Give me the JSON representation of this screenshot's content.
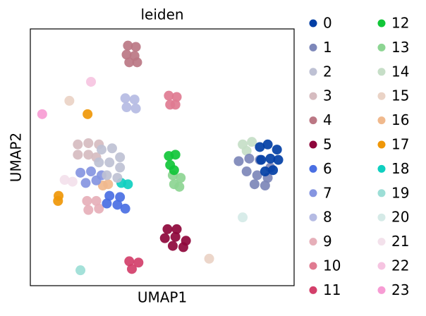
{
  "chart_data": {
    "type": "scatter",
    "title": "leiden",
    "xlabel": "UMAP1",
    "ylabel": "UMAP2",
    "xlim": [
      0,
      10
    ],
    "ylim": [
      0,
      10
    ],
    "series": [
      {
        "name": "0",
        "color": "#023fa5",
        "x": [
          8.7,
          9.0,
          9.35,
          8.75,
          9.1,
          9.4,
          8.9,
          9.2
        ],
        "y": [
          5.4,
          5.5,
          5.3,
          4.9,
          4.95,
          4.9,
          4.45,
          4.5
        ]
      },
      {
        "name": "1",
        "color": "#7d87b9",
        "x": [
          7.9,
          8.3,
          8.7,
          9.1,
          8.2,
          8.6,
          9.0,
          8.5,
          8.9
        ],
        "y": [
          4.85,
          4.95,
          4.9,
          4.6,
          4.45,
          4.3,
          4.2,
          3.95,
          3.9
        ]
      },
      {
        "name": "2",
        "color": "#bec1d4",
        "x": [
          2.7,
          3.1,
          3.4,
          2.6,
          3.0,
          3.4,
          2.9,
          3.3
        ],
        "y": [
          5.3,
          5.35,
          5.0,
          4.8,
          4.8,
          4.6,
          4.3,
          4.2
        ]
      },
      {
        "name": "3",
        "color": "#d6bcc0",
        "x": [
          1.8,
          2.2,
          2.6,
          1.8,
          2.2,
          2.5
        ],
        "y": [
          5.5,
          5.55,
          5.5,
          5.1,
          5.1,
          5.0
        ]
      },
      {
        "name": "4",
        "color": "#bb7784",
        "x": [
          3.7,
          4.0,
          3.65,
          3.95,
          3.75,
          4.05
        ],
        "y": [
          9.35,
          9.3,
          9.0,
          8.95,
          8.7,
          8.7
        ]
      },
      {
        "name": "5",
        "color": "#8e063b",
        "x": [
          5.2,
          5.55,
          5.1,
          5.5,
          5.9,
          5.4,
          5.8
        ],
        "y": [
          2.2,
          2.2,
          1.85,
          1.9,
          1.75,
          1.55,
          1.5
        ]
      },
      {
        "name": "6",
        "color": "#4a6fe3",
        "x": [
          3.0,
          3.4,
          2.9,
          3.3,
          3.6
        ],
        "y": [
          3.5,
          3.45,
          3.2,
          3.15,
          3.0
        ]
      },
      {
        "name": "7",
        "color": "#8595e1",
        "x": [
          1.9,
          2.3,
          2.7,
          2.1,
          2.5
        ],
        "y": [
          4.4,
          4.45,
          4.3,
          4.0,
          4.1
        ]
      },
      {
        "name": "8",
        "color": "#b5bbe3",
        "x": [
          3.6,
          3.95,
          3.65,
          4.0
        ],
        "y": [
          7.3,
          7.25,
          6.95,
          6.9
        ]
      },
      {
        "name": "9",
        "color": "#e6afb9",
        "x": [
          2.15,
          2.5,
          2.2,
          2.6
        ],
        "y": [
          3.3,
          3.3,
          2.95,
          3.0
        ]
      },
      {
        "name": "10",
        "color": "#e07b91",
        "x": [
          5.25,
          5.55,
          5.3,
          5.5
        ],
        "y": [
          7.4,
          7.35,
          7.05,
          7.05
        ]
      },
      {
        "name": "11",
        "color": "#d33f6a",
        "x": [
          3.75,
          4.1,
          3.85
        ],
        "y": [
          0.95,
          0.9,
          0.65
        ]
      },
      {
        "name": "12",
        "color": "#11c638",
        "x": [
          5.25,
          5.5,
          5.3,
          5.45
        ],
        "y": [
          5.05,
          5.1,
          4.7,
          4.5
        ]
      },
      {
        "name": "13",
        "color": "#8dd593",
        "x": [
          5.4,
          5.7,
          5.45,
          5.65
        ],
        "y": [
          4.3,
          4.2,
          3.95,
          3.85
        ]
      },
      {
        "name": "14",
        "color": "#c6dec7",
        "x": [
          8.05,
          8.4,
          8.2
        ],
        "y": [
          5.5,
          5.6,
          5.25
        ]
      },
      {
        "name": "15",
        "color": "#ead3c6",
        "x": [
          1.48,
          6.78
        ],
        "y": [
          7.2,
          1.05
        ]
      },
      {
        "name": "16",
        "color": "#f0b98d",
        "x": [
          2.75,
          2.95
        ],
        "y": [
          3.9,
          3.95
        ]
      },
      {
        "name": "17",
        "color": "#ef9708",
        "x": [
          2.17,
          1.07,
          1.05
        ],
        "y": [
          6.68,
          3.5,
          3.3
        ]
      },
      {
        "name": "18",
        "color": "#0fcfc0",
        "x": [
          3.45,
          3.7
        ],
        "y": [
          4.0,
          3.95
        ]
      },
      {
        "name": "19",
        "color": "#9cded6",
        "x": [
          1.9
        ],
        "y": [
          0.6
        ]
      },
      {
        "name": "20",
        "color": "#d5eae7",
        "x": [
          8.05
        ],
        "y": [
          2.66
        ]
      },
      {
        "name": "21",
        "color": "#f3e1eb",
        "x": [
          1.3,
          1.6
        ],
        "y": [
          4.12,
          4.05
        ]
      },
      {
        "name": "22",
        "color": "#f6c4e1",
        "x": [
          2.3
        ],
        "y": [
          7.94
        ]
      },
      {
        "name": "23",
        "color": "#f79cd4",
        "x": [
          0.45
        ],
        "y": [
          6.68
        ]
      }
    ]
  }
}
